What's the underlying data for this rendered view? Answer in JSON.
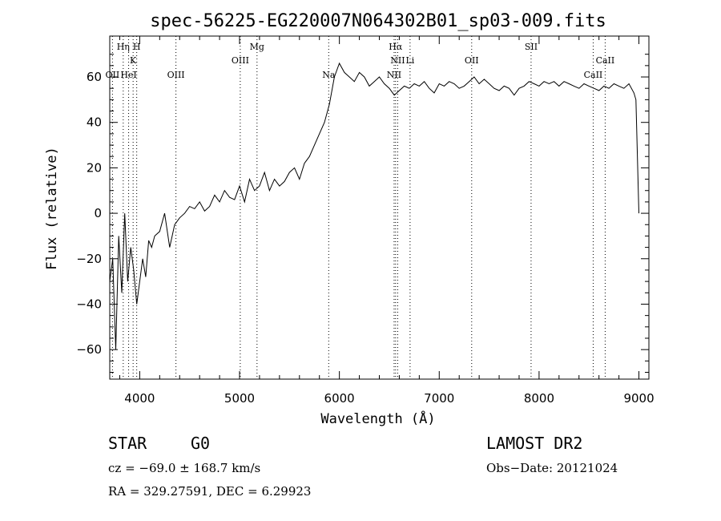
{
  "chart_data": {
    "type": "line",
    "title": "spec-56225-EG220007N064302B01_sp03-009.fits",
    "xlabel": "Wavelength (Å)",
    "ylabel": "Flux (relative)",
    "xlim": [
      3700,
      9100
    ],
    "ylim": [
      -73,
      78
    ],
    "xticks": [
      4000,
      5000,
      6000,
      7000,
      8000,
      9000
    ],
    "yticks": [
      -60,
      -40,
      -20,
      0,
      20,
      40,
      60
    ],
    "grid": false,
    "line_color": "#000000",
    "series": [
      {
        "x": [
          3700,
          3730,
          3760,
          3790,
          3820,
          3850,
          3880,
          3910,
          3940,
          3970,
          4000,
          4030,
          4060,
          4090,
          4120,
          4150,
          4200,
          4250,
          4300,
          4350,
          4400,
          4450,
          4500,
          4550,
          4600,
          4650,
          4700,
          4750,
          4800,
          4850,
          4900,
          4950,
          5000,
          5050,
          5100,
          5150,
          5200,
          5250,
          5300,
          5350,
          5400,
          5450,
          5500,
          5550,
          5600,
          5650,
          5700,
          5750,
          5800,
          5850,
          5900,
          5950,
          6000,
          6050,
          6100,
          6150,
          6200,
          6250,
          6300,
          6350,
          6400,
          6450,
          6500,
          6550,
          6600,
          6650,
          6700,
          6750,
          6800,
          6850,
          6900,
          6950,
          7000,
          7050,
          7100,
          7150,
          7200,
          7250,
          7300,
          7350,
          7400,
          7450,
          7500,
          7550,
          7600,
          7650,
          7700,
          7750,
          7800,
          7850,
          7900,
          7950,
          8000,
          8050,
          8100,
          8150,
          8200,
          8250,
          8300,
          8350,
          8400,
          8450,
          8500,
          8550,
          8600,
          8650,
          8700,
          8750,
          8800,
          8850,
          8900,
          8950,
          8970,
          9000
        ],
        "y": [
          -30,
          -20,
          -60,
          -10,
          -35,
          0,
          -30,
          -15,
          -25,
          -40,
          -30,
          -20,
          -28,
          -12,
          -15,
          -10,
          -8,
          0,
          -15,
          -5,
          -2,
          0,
          3,
          2,
          5,
          1,
          3,
          8,
          5,
          10,
          7,
          6,
          12,
          5,
          15,
          10,
          12,
          18,
          10,
          15,
          12,
          14,
          18,
          20,
          15,
          22,
          25,
          30,
          35,
          40,
          48,
          60,
          66,
          62,
          60,
          58,
          62,
          60,
          56,
          58,
          60,
          57,
          55,
          52,
          54,
          56,
          55,
          57,
          56,
          58,
          55,
          53,
          57,
          56,
          58,
          57,
          55,
          56,
          58,
          60,
          57,
          59,
          57,
          55,
          54,
          56,
          55,
          52,
          55,
          56,
          58,
          57,
          56,
          58,
          57,
          58,
          56,
          58,
          57,
          56,
          55,
          57,
          56,
          55,
          54,
          56,
          55,
          57,
          56,
          55,
          57,
          53,
          50,
          0
        ]
      }
    ],
    "lines": [
      {
        "label": "Hη",
        "x": 3835,
        "row": 1
      },
      {
        "label": "H",
        "x": 3970,
        "row": 1
      },
      {
        "label": "K",
        "x": 3934,
        "row": 2
      },
      {
        "label": "OII",
        "x": 3727,
        "row": 3
      },
      {
        "label": "HeI",
        "x": 3889,
        "row": 3
      },
      {
        "label": "OIII",
        "x": 4363,
        "row": 3
      },
      {
        "label": "OIII",
        "x": 5007,
        "row": 2
      },
      {
        "label": "Mg",
        "x": 5175,
        "row": 1
      },
      {
        "label": "Na",
        "x": 5893,
        "row": 3
      },
      {
        "label": "Hα",
        "x": 6563,
        "row": 1
      },
      {
        "label": "NII",
        "x": 6584,
        "row": 2
      },
      {
        "label": "NII",
        "x": 6548,
        "row": 3
      },
      {
        "label": "Li",
        "x": 6708,
        "row": 2
      },
      {
        "label": "OII",
        "x": 7325,
        "row": 2
      },
      {
        "label": "SII",
        "x": 7920,
        "row": 1
      },
      {
        "label": "CaII",
        "x": 8662,
        "row": 2
      },
      {
        "label": "CaII",
        "x": 8542,
        "row": 3
      }
    ]
  },
  "info": {
    "object_class": "STAR",
    "subclass": "G0",
    "survey": "LAMOST DR2",
    "redshift": "cz = −69.0 ± 168.7 km/s",
    "obs_date": "Obs−Date: 20121024",
    "coords": "RA = 329.27591, DEC =   6.29923"
  }
}
